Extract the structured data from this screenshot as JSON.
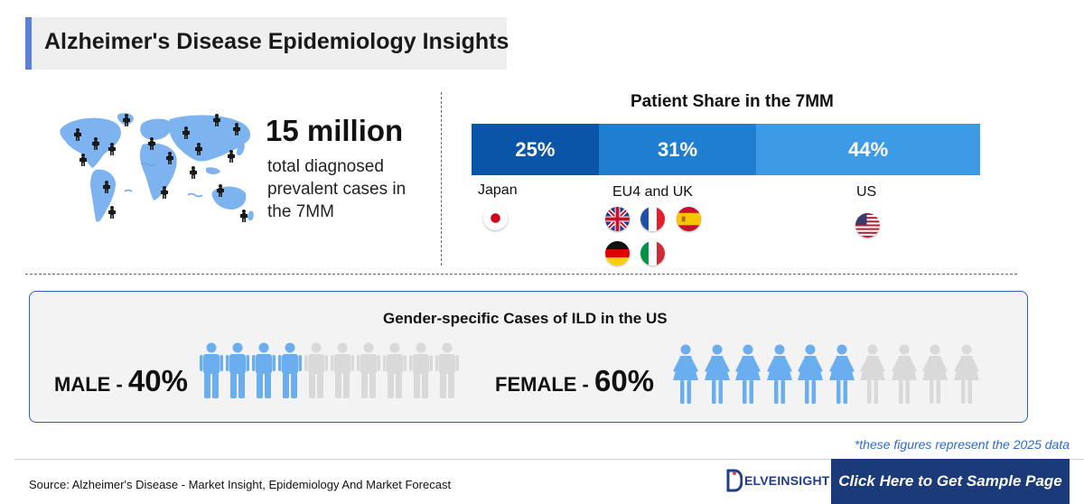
{
  "header": {
    "title": "Alzheimer's Disease Epidemiology Insights"
  },
  "summary": {
    "big_number": "15 million",
    "description": "total diagnosed prevalent cases in the 7MM"
  },
  "patient_share": {
    "title": "Patient Share in the 7MM",
    "segments": [
      {
        "label": "25%",
        "value": 25,
        "color": "#0b55a8"
      },
      {
        "label": "31%",
        "value": 31,
        "color": "#1f7ed0"
      },
      {
        "label": "44%",
        "value": 44,
        "color": "#3d9be6"
      }
    ],
    "regions": [
      {
        "name": "Japan",
        "flags": [
          "japan-flag-icon"
        ]
      },
      {
        "name": "EU4 and UK",
        "flags": [
          "uk-flag-icon",
          "france-flag-icon",
          "spain-flag-icon",
          "germany-flag-icon",
          "italy-flag-icon"
        ]
      },
      {
        "name": "US",
        "flags": [
          "usa-flag-icon"
        ]
      }
    ]
  },
  "gender": {
    "title": "Gender-specific Cases of ILD in the US",
    "male": {
      "label": "MALE - ",
      "pct": "40%",
      "filled": 4,
      "total": 10,
      "icon": "male-person-icon"
    },
    "female": {
      "label": "FEMALE - ",
      "pct": "60%",
      "filled": 6,
      "total": 10,
      "icon": "female-person-icon"
    },
    "filled_color": "#6aaef0",
    "empty_color": "#d9d9d9"
  },
  "note": "*these figures represent the 2025 data",
  "footer": {
    "source": "Source: Alzheimer's Disease - Market Insight, Epidemiology And Market Forecast",
    "logo_text": "ELVEINSIGHT",
    "cta_label": "Click Here to Get Sample Page"
  }
}
